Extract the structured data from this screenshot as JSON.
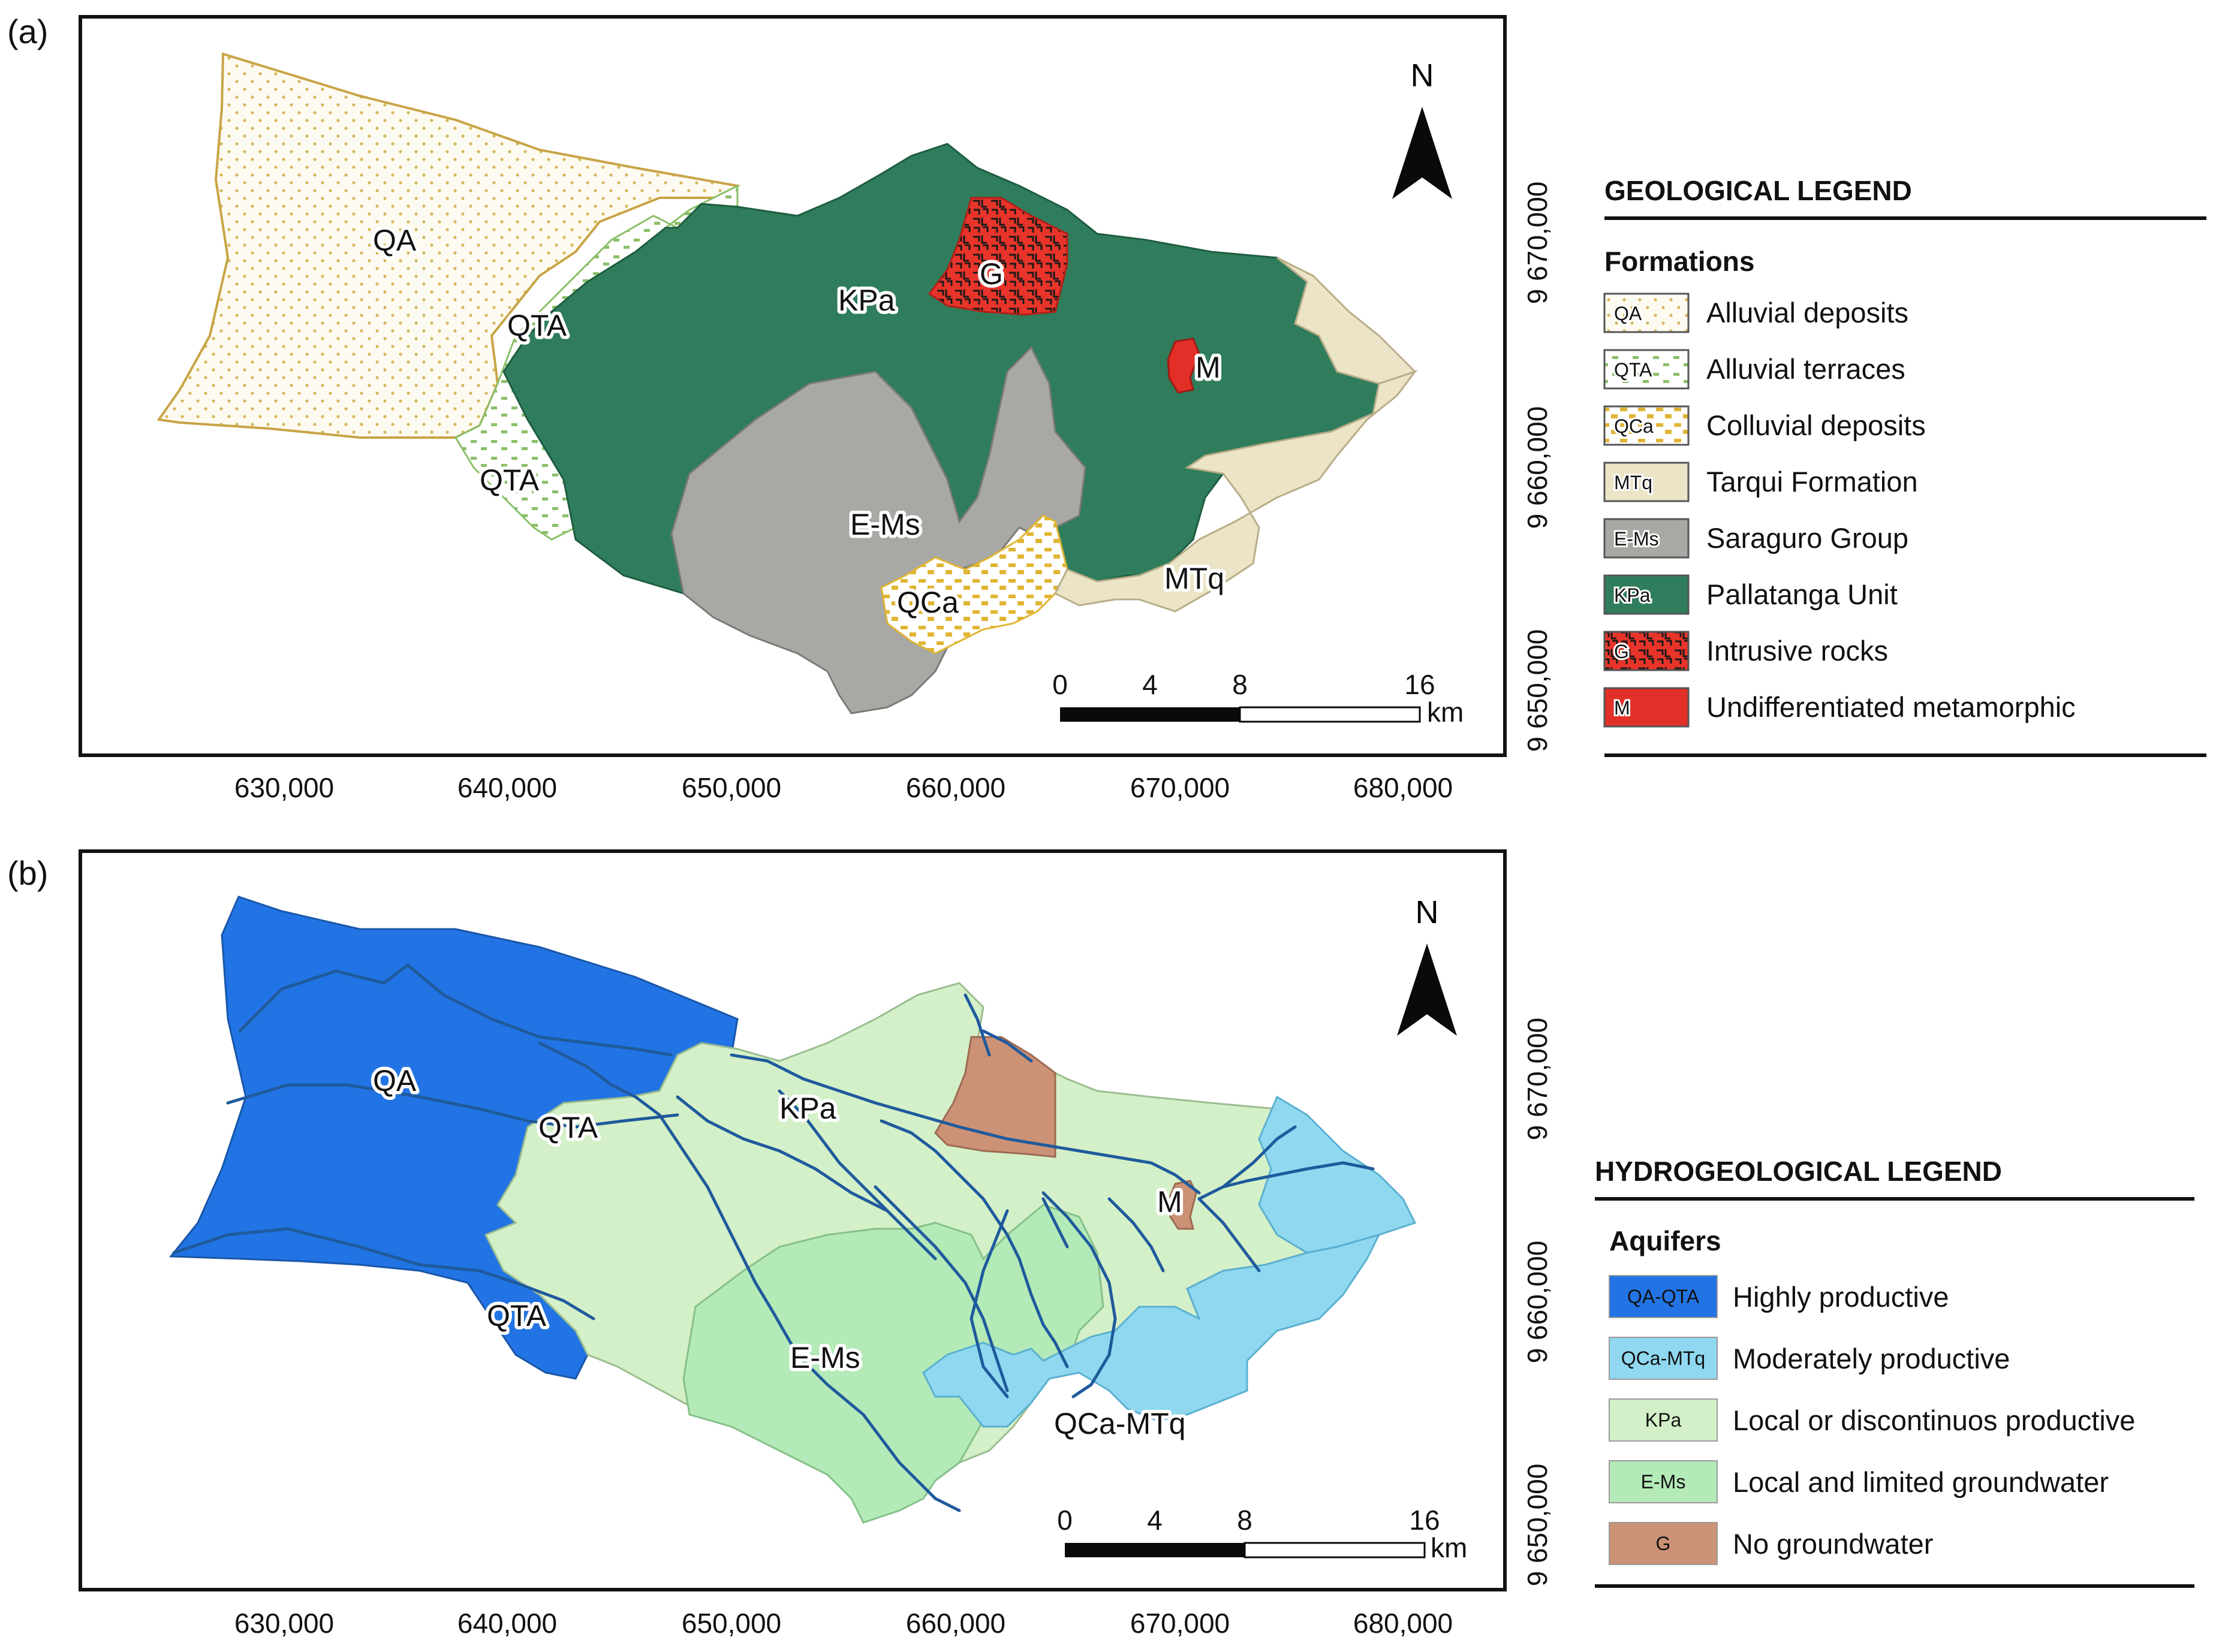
{
  "panel_a": {
    "tag": "(a)",
    "north": "N",
    "legend_title": "GEOLOGICAL LEGEND",
    "legend_subtitle": "Formations",
    "legend_items": [
      {
        "code": "QA",
        "label": "Alluvial deposits",
        "fill": "#fbf7e6",
        "pattern": "dots"
      },
      {
        "code": "QTA",
        "label": "Alluvial terraces",
        "fill": "#ffffff",
        "pattern": "dash"
      },
      {
        "code": "QCa",
        "label": "Colluvial deposits",
        "fill": "#ffffff",
        "pattern": "yellow"
      },
      {
        "code": "MTq",
        "label": "Tarqui Formation",
        "fill": "#ece4c7",
        "pattern": "none"
      },
      {
        "code": "E-Ms",
        "label": "Saraguro Group",
        "fill": "#a8a8a4",
        "pattern": "none"
      },
      {
        "code": "KPa",
        "label": "Pallatanga Unit",
        "fill": "#2f7d5c",
        "pattern": "none"
      },
      {
        "code": "G",
        "label": "Intrusive rocks",
        "fill": "#e8342a",
        "pattern": "cross"
      },
      {
        "code": "M",
        "label": "Undifferentiated metamorphic",
        "fill": "#e23028",
        "pattern": "none"
      }
    ],
    "map_labels": {
      "qa": "QA",
      "qta1": "QTA",
      "qta2": "QTA",
      "kpa": "KPa",
      "g": "G",
      "m": "M",
      "ems": "E-Ms",
      "qca": "QCa",
      "mtq": "MTq"
    },
    "scale": {
      "t0": "0",
      "t1": "4",
      "t2": "8",
      "t3": "16",
      "unit": "km"
    },
    "x_ticks": [
      "630,000",
      "640,000",
      "650,000",
      "660,000",
      "670,000",
      "680,000"
    ],
    "y_ticks": [
      "9 670,000",
      "9 660,000",
      "9 650,000"
    ]
  },
  "panel_b": {
    "tag": "(b)",
    "north": "N",
    "legend_title": "HYDROGEOLOGICAL LEGEND",
    "legend_subtitle": "Aquifers",
    "legend_items": [
      {
        "code": "QA-QTA",
        "label": "Highly productive",
        "fill": "#2274e4"
      },
      {
        "code": "QCa-MTq",
        "label": "Moderately productive",
        "fill": "#8fd8f0"
      },
      {
        "code": "KPa",
        "label": "Local or discontinuos productive",
        "fill": "#d4f0c8"
      },
      {
        "code": "E-Ms",
        "label": "Local and limited groundwater",
        "fill": "#b4eab8"
      },
      {
        "code": "G",
        "label": "No groundwater",
        "fill": "#cc9276"
      }
    ],
    "map_labels": {
      "qa": "QA",
      "qta1": "QTA",
      "qta2": "QTA",
      "kpa": "KPa",
      "m": "M",
      "ems": "E-Ms",
      "qcamtq": "QCa-MTq"
    },
    "scale": {
      "t0": "0",
      "t1": "4",
      "t2": "8",
      "t3": "16",
      "unit": "km"
    },
    "x_ticks": [
      "630,000",
      "640,000",
      "650,000",
      "660,000",
      "670,000",
      "680,000"
    ],
    "y_ticks": [
      "9 670,000",
      "9 660,000",
      "9 650,000"
    ]
  }
}
